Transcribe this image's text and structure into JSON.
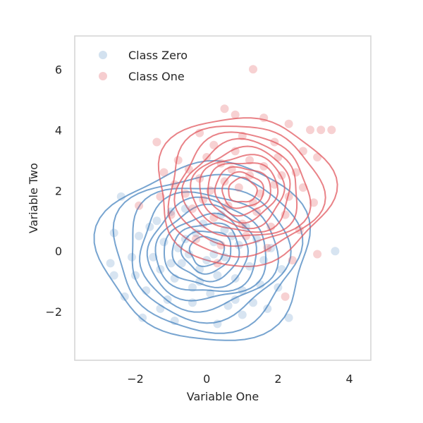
{
  "chart_data": {
    "type": "scatter",
    "title": "",
    "xlabel": "Variable One",
    "ylabel": "Variable Two",
    "xlim": [
      -3.7,
      4.6
    ],
    "ylim": [
      -3.6,
      7.1
    ],
    "xticks": [
      -2,
      0,
      2,
      4
    ],
    "yticks": [
      -2,
      0,
      2,
      4,
      6
    ],
    "xtick_labels": [
      "−2",
      "0",
      "2",
      "4"
    ],
    "ytick_labels": [
      "−2",
      "0",
      "2",
      "4",
      "6"
    ],
    "grid": false,
    "legend_position": "top-left",
    "overlay": "kde-contours",
    "series": [
      {
        "name": "Class Zero",
        "color": "#4a86c0",
        "mean": [
          0,
          0
        ],
        "std": [
          1.2,
          1.2
        ],
        "points": [
          [
            -2.4,
            1.8
          ],
          [
            -2.6,
            0.6
          ],
          [
            -2.7,
            -0.4
          ],
          [
            -2.6,
            -0.8
          ],
          [
            -2.3,
            -1.5
          ],
          [
            -2.0,
            -0.8
          ],
          [
            -1.9,
            0.5
          ],
          [
            -1.7,
            -1.3
          ],
          [
            -1.6,
            0.8
          ],
          [
            -1.5,
            -0.2
          ],
          [
            -1.4,
            1.0
          ],
          [
            -1.3,
            -0.6
          ],
          [
            -1.2,
            0.3
          ],
          [
            -1.1,
            -1.6
          ],
          [
            -1.0,
            1.3
          ],
          [
            -0.9,
            -0.9
          ],
          [
            -0.8,
            0.1
          ],
          [
            -0.7,
            -0.4
          ],
          [
            -0.6,
            1.4
          ],
          [
            -0.5,
            -0.1
          ],
          [
            -0.4,
            -1.2
          ],
          [
            -0.3,
            0.6
          ],
          [
            -0.2,
            -0.6
          ],
          [
            -0.1,
            0.9
          ],
          [
            0.0,
            -0.3
          ],
          [
            0.1,
            -1.4
          ],
          [
            0.2,
            0.3
          ],
          [
            0.3,
            -0.8
          ],
          [
            0.4,
            1.2
          ],
          [
            0.5,
            -0.2
          ],
          [
            0.6,
            -1.8
          ],
          [
            0.7,
            0.5
          ],
          [
            0.8,
            -0.9
          ],
          [
            0.9,
            0.2
          ],
          [
            1.0,
            -1.3
          ],
          [
            1.1,
            0.8
          ],
          [
            1.2,
            -0.5
          ],
          [
            1.3,
            -1.7
          ],
          [
            1.4,
            0.4
          ],
          [
            1.5,
            -1.1
          ],
          [
            1.6,
            -0.3
          ],
          [
            1.7,
            -1.9
          ],
          [
            1.8,
            0.1
          ],
          [
            2.0,
            -1.2
          ],
          [
            2.1,
            -0.6
          ],
          [
            -1.8,
            -2.2
          ],
          [
            -0.9,
            -2.3
          ],
          [
            0.3,
            -2.4
          ],
          [
            1.0,
            -2.1
          ],
          [
            2.3,
            -2.2
          ],
          [
            3.6,
            0.0
          ],
          [
            -0.4,
            -1.7
          ],
          [
            -1.3,
            -1.9
          ],
          [
            0.8,
            -1.6
          ],
          [
            -2.1,
            -0.2
          ],
          [
            -0.6,
            0.4
          ],
          [
            0.2,
            -0.1
          ],
          [
            -1.0,
            -0.4
          ],
          [
            0.5,
            0.7
          ],
          [
            -0.2,
            -1.0
          ]
        ]
      },
      {
        "name": "Class One",
        "color": "#e2585f",
        "mean": [
          1,
          2
        ],
        "std": [
          1.0,
          1.0
        ],
        "points": [
          [
            1.3,
            6.0
          ],
          [
            0.5,
            4.7
          ],
          [
            0.8,
            4.5
          ],
          [
            1.6,
            4.4
          ],
          [
            2.3,
            4.2
          ],
          [
            2.9,
            4.0
          ],
          [
            3.5,
            4.0
          ],
          [
            3.2,
            4.0
          ],
          [
            -1.4,
            3.6
          ],
          [
            -0.2,
            3.9
          ],
          [
            0.2,
            3.5
          ],
          [
            1.0,
            3.8
          ],
          [
            1.9,
            3.6
          ],
          [
            2.7,
            3.3
          ],
          [
            3.1,
            3.1
          ],
          [
            -1.2,
            2.6
          ],
          [
            -0.8,
            3.0
          ],
          [
            -0.5,
            2.7
          ],
          [
            0.0,
            3.1
          ],
          [
            0.4,
            2.9
          ],
          [
            0.8,
            3.3
          ],
          [
            1.2,
            3.0
          ],
          [
            1.6,
            2.8
          ],
          [
            2.0,
            3.1
          ],
          [
            2.5,
            2.6
          ],
          [
            -1.3,
            1.8
          ],
          [
            -0.9,
            2.2
          ],
          [
            -0.6,
            1.9
          ],
          [
            -0.2,
            2.4
          ],
          [
            0.1,
            2.0
          ],
          [
            0.5,
            2.3
          ],
          [
            0.9,
            2.1
          ],
          [
            1.2,
            2.5
          ],
          [
            1.5,
            1.9
          ],
          [
            1.9,
            2.2
          ],
          [
            2.3,
            1.8
          ],
          [
            2.7,
            2.1
          ],
          [
            3.0,
            1.6
          ],
          [
            -1.9,
            1.5
          ],
          [
            -1.0,
            1.2
          ],
          [
            -0.4,
            1.4
          ],
          [
            0.2,
            1.1
          ],
          [
            0.6,
            1.5
          ],
          [
            1.0,
            0.9
          ],
          [
            1.4,
            1.3
          ],
          [
            1.8,
            0.8
          ],
          [
            2.2,
            1.2
          ],
          [
            2.6,
            0.7
          ],
          [
            -0.3,
            0.4
          ],
          [
            0.4,
            0.2
          ],
          [
            1.1,
            0.5
          ],
          [
            1.7,
            0.1
          ],
          [
            2.4,
            -0.3
          ],
          [
            3.1,
            -0.1
          ],
          [
            0.3,
            -0.4
          ],
          [
            2.2,
            -1.5
          ],
          [
            0.7,
            2.7
          ],
          [
            1.3,
            1.6
          ],
          [
            -0.1,
            1.7
          ],
          [
            2.1,
            2.5
          ]
        ]
      }
    ],
    "legend": [
      "Class Zero",
      "Class One"
    ]
  }
}
